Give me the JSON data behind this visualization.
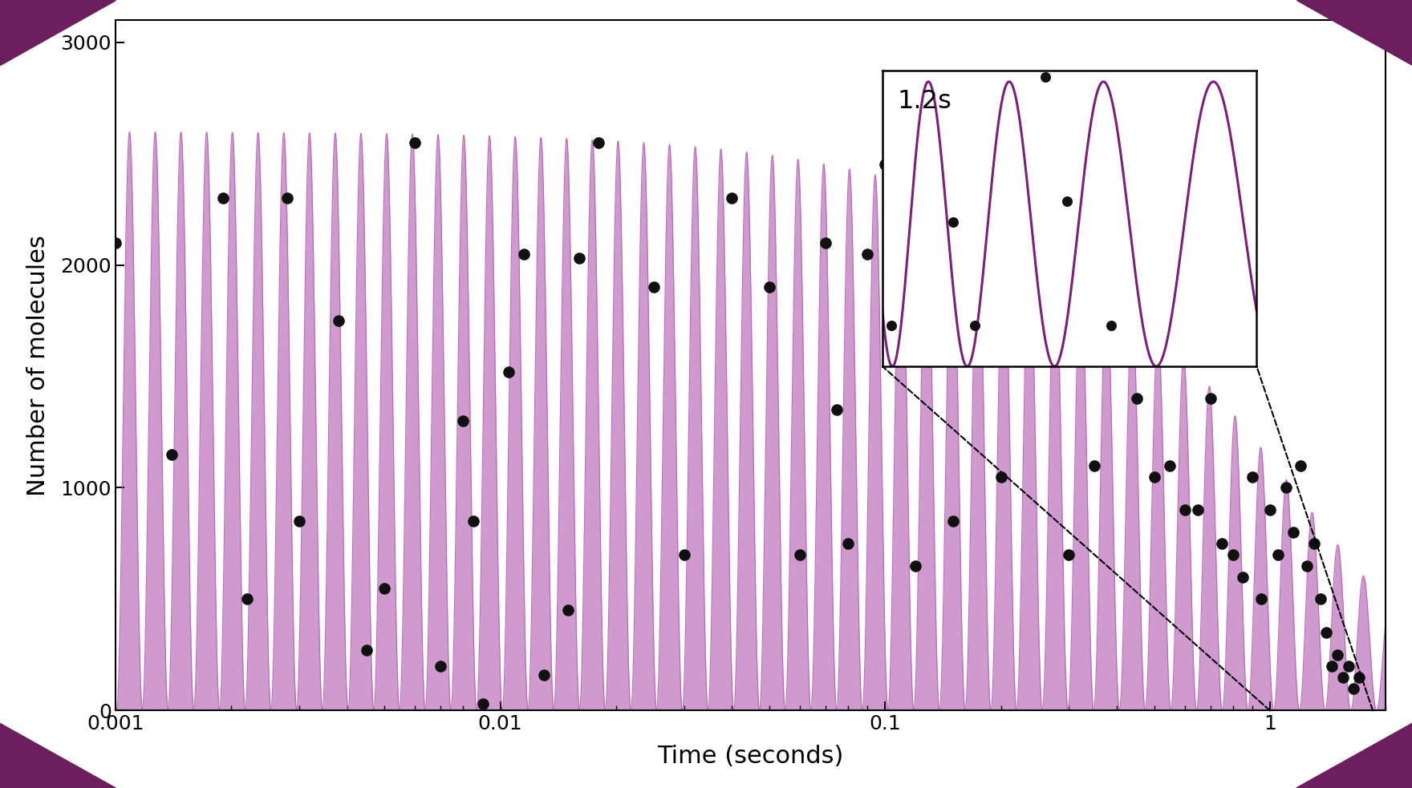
{
  "bg_color": "#ffffff",
  "corner_color": "#6b1f5c",
  "line_color": "#b565b5",
  "fill_color": "#c07ac0",
  "fill_alpha": 0.75,
  "dot_color": "#111111",
  "inset_line_color": "#7a1f7a",
  "ylabel": "Number of molecules",
  "xlabel": "Time (seconds)",
  "ylim": [
    0,
    3000
  ],
  "N_max": 2600,
  "decay_tau": 1.2,
  "inset_label": "1.2s",
  "early_dots_t": [
    0.001,
    0.0014,
    0.0019,
    0.0022,
    0.0028,
    0.003,
    0.0038,
    0.0045,
    0.005,
    0.006,
    0.007,
    0.008,
    0.0085,
    0.009,
    0.0105,
    0.0115,
    0.013
  ],
  "early_dots_y": [
    2100,
    1150,
    2300,
    500,
    2300,
    850,
    1750,
    270,
    550,
    2550,
    200,
    1300,
    850,
    30,
    1520,
    2050,
    160
  ],
  "mid_dots_t": [
    0.015,
    0.016,
    0.018,
    0.025,
    0.03,
    0.04,
    0.05,
    0.06,
    0.07,
    0.075,
    0.08,
    0.09,
    0.1,
    0.12,
    0.15,
    0.18,
    0.2,
    0.25,
    0.3
  ],
  "mid_dots_y": [
    450,
    2030,
    2550,
    1900,
    700,
    2300,
    1900,
    700,
    2100,
    1350,
    750,
    2050,
    2450,
    650,
    850,
    2100,
    1050,
    1800,
    700
  ],
  "late_dots_t": [
    0.35,
    0.4,
    0.45,
    0.5,
    0.55,
    0.6,
    0.65,
    0.7,
    0.75,
    0.8,
    0.85,
    0.9,
    0.95,
    1.0,
    1.05,
    1.1,
    1.15,
    1.2,
    1.25,
    1.3,
    1.35,
    1.4,
    1.45,
    1.5,
    1.55,
    1.6,
    1.65,
    1.7
  ],
  "late_dots_y": [
    1100,
    1750,
    1400,
    1050,
    1100,
    900,
    900,
    1400,
    750,
    700,
    600,
    1050,
    500,
    900,
    700,
    1000,
    800,
    1100,
    650,
    750,
    500,
    350,
    200,
    250,
    150,
    200,
    100,
    150
  ],
  "inset_t_vals": [
    1.02,
    1.05,
    1.09,
    1.13,
    1.16,
    1.21,
    1.27,
    1.31,
    1.37,
    1.42,
    1.52,
    1.62,
    1.72
  ],
  "inset_y_vals": [
    200,
    1800,
    2500,
    1800,
    700,
    200,
    1600,
    2700,
    1400,
    800,
    200,
    1600,
    2600
  ],
  "f_chirp": 2.0,
  "t_ref": 0.0005
}
